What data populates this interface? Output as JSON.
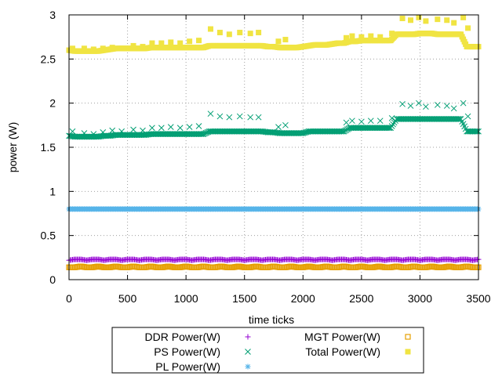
{
  "chart_data": {
    "type": "scatter",
    "xlabel": "time ticks",
    "ylabel": "power (W)",
    "xlim": [
      0,
      3500
    ],
    "ylim": [
      0,
      3
    ],
    "x_ticks": [
      "0",
      "500",
      "1000",
      "1500",
      "2000",
      "2500",
      "3000",
      "3500"
    ],
    "y_ticks": [
      "0",
      "0.5",
      "1",
      "1.5",
      "2",
      "2.5",
      "3"
    ],
    "grid": true,
    "legend_position": "below",
    "sample_step": 50,
    "series": [
      {
        "name": "DDR Power(W)",
        "marker": "plus",
        "color": "#9400d3",
        "x": [
          0,
          50,
          100,
          150,
          200,
          250,
          300,
          350,
          400,
          450,
          500,
          550,
          600,
          650,
          700,
          750,
          800,
          850,
          900,
          950,
          1000,
          1050,
          1100,
          1150,
          1200,
          1250,
          1300,
          1350,
          1400,
          1450,
          1500,
          1550,
          1600,
          1650,
          1700,
          1750,
          1800,
          1850,
          1900,
          1950,
          2000,
          2050,
          2100,
          2150,
          2200,
          2250,
          2300,
          2350,
          2400,
          2450,
          2500,
          2550,
          2600,
          2650,
          2700,
          2750,
          2800,
          2850,
          2900,
          2950,
          3000,
          3050,
          3100,
          3150,
          3200,
          3250,
          3300,
          3350,
          3400,
          3450,
          3500
        ],
        "y": [
          0.22,
          0.23,
          0.23,
          0.22,
          0.23,
          0.23,
          0.22,
          0.23,
          0.23,
          0.22,
          0.23,
          0.23,
          0.22,
          0.23,
          0.23,
          0.22,
          0.23,
          0.23,
          0.22,
          0.23,
          0.23,
          0.22,
          0.23,
          0.23,
          0.22,
          0.23,
          0.23,
          0.22,
          0.23,
          0.23,
          0.22,
          0.23,
          0.23,
          0.22,
          0.23,
          0.23,
          0.22,
          0.23,
          0.23,
          0.22,
          0.23,
          0.23,
          0.22,
          0.23,
          0.23,
          0.22,
          0.23,
          0.23,
          0.22,
          0.23,
          0.23,
          0.22,
          0.23,
          0.23,
          0.22,
          0.23,
          0.23,
          0.22,
          0.23,
          0.23,
          0.22,
          0.23,
          0.23,
          0.22,
          0.23,
          0.23,
          0.22,
          0.23,
          0.23,
          0.22,
          0.23
        ]
      },
      {
        "name": "PS Power(W)",
        "marker": "cross",
        "color": "#009e73",
        "x": [
          0,
          50,
          100,
          150,
          200,
          250,
          300,
          350,
          400,
          450,
          500,
          550,
          600,
          650,
          700,
          750,
          800,
          850,
          900,
          950,
          1000,
          1050,
          1100,
          1150,
          1200,
          1250,
          1300,
          1350,
          1400,
          1450,
          1500,
          1550,
          1600,
          1650,
          1700,
          1750,
          1800,
          1850,
          1900,
          1950,
          2000,
          2050,
          2100,
          2150,
          2200,
          2250,
          2300,
          2350,
          2400,
          2450,
          2500,
          2550,
          2600,
          2650,
          2700,
          2750,
          2800,
          2850,
          2900,
          2950,
          3000,
          3050,
          3100,
          3150,
          3200,
          3250,
          3300,
          3350,
          3400,
          3450,
          3500
        ],
        "y": [
          1.63,
          1.62,
          1.62,
          1.62,
          1.62,
          1.62,
          1.63,
          1.63,
          1.64,
          1.64,
          1.64,
          1.64,
          1.64,
          1.64,
          1.65,
          1.65,
          1.65,
          1.65,
          1.65,
          1.65,
          1.65,
          1.65,
          1.65,
          1.65,
          1.68,
          1.68,
          1.68,
          1.68,
          1.68,
          1.68,
          1.68,
          1.68,
          1.68,
          1.68,
          1.67,
          1.67,
          1.66,
          1.66,
          1.66,
          1.66,
          1.66,
          1.68,
          1.68,
          1.68,
          1.68,
          1.68,
          1.68,
          1.68,
          1.72,
          1.72,
          1.72,
          1.72,
          1.72,
          1.72,
          1.72,
          1.72,
          1.82,
          1.82,
          1.82,
          1.82,
          1.82,
          1.82,
          1.82,
          1.82,
          1.82,
          1.82,
          1.82,
          1.82,
          1.68,
          1.68,
          1.68
        ]
      },
      {
        "name": "PL Power(W)",
        "marker": "star",
        "color": "#56b4e9",
        "x": [
          0,
          50,
          100,
          150,
          200,
          250,
          300,
          350,
          400,
          450,
          500,
          550,
          600,
          650,
          700,
          750,
          800,
          850,
          900,
          950,
          1000,
          1050,
          1100,
          1150,
          1200,
          1250,
          1300,
          1350,
          1400,
          1450,
          1500,
          1550,
          1600,
          1650,
          1700,
          1750,
          1800,
          1850,
          1900,
          1950,
          2000,
          2050,
          2100,
          2150,
          2200,
          2250,
          2300,
          2350,
          2400,
          2450,
          2500,
          2550,
          2600,
          2650,
          2700,
          2750,
          2800,
          2850,
          2900,
          2950,
          3000,
          3050,
          3100,
          3150,
          3200,
          3250,
          3300,
          3350,
          3400,
          3450,
          3500
        ],
        "y": [
          0.8,
          0.8,
          0.8,
          0.8,
          0.8,
          0.8,
          0.8,
          0.8,
          0.8,
          0.8,
          0.8,
          0.8,
          0.8,
          0.8,
          0.8,
          0.8,
          0.8,
          0.8,
          0.8,
          0.8,
          0.8,
          0.8,
          0.8,
          0.8,
          0.8,
          0.8,
          0.8,
          0.8,
          0.8,
          0.8,
          0.8,
          0.8,
          0.8,
          0.8,
          0.8,
          0.8,
          0.8,
          0.8,
          0.8,
          0.8,
          0.8,
          0.8,
          0.8,
          0.8,
          0.8,
          0.8,
          0.8,
          0.8,
          0.8,
          0.8,
          0.8,
          0.8,
          0.8,
          0.8,
          0.8,
          0.8,
          0.8,
          0.8,
          0.8,
          0.8,
          0.8,
          0.8,
          0.8,
          0.8,
          0.8,
          0.8,
          0.8,
          0.8,
          0.8,
          0.8,
          0.8
        ]
      },
      {
        "name": "MGT Power(W)",
        "marker": "box-open",
        "color": "#e69f00",
        "x": [
          0,
          50,
          100,
          150,
          200,
          250,
          300,
          350,
          400,
          450,
          500,
          550,
          600,
          650,
          700,
          750,
          800,
          850,
          900,
          950,
          1000,
          1050,
          1100,
          1150,
          1200,
          1250,
          1300,
          1350,
          1400,
          1450,
          1500,
          1550,
          1600,
          1650,
          1700,
          1750,
          1800,
          1850,
          1900,
          1950,
          2000,
          2050,
          2100,
          2150,
          2200,
          2250,
          2300,
          2350,
          2400,
          2450,
          2500,
          2550,
          2600,
          2650,
          2700,
          2750,
          2800,
          2850,
          2900,
          2950,
          3000,
          3050,
          3100,
          3150,
          3200,
          3250,
          3300,
          3350,
          3400,
          3450,
          3500
        ],
        "y": [
          0.14,
          0.14,
          0.15,
          0.14,
          0.14,
          0.15,
          0.14,
          0.14,
          0.15,
          0.14,
          0.14,
          0.15,
          0.14,
          0.14,
          0.15,
          0.14,
          0.14,
          0.15,
          0.14,
          0.14,
          0.15,
          0.14,
          0.14,
          0.15,
          0.14,
          0.14,
          0.15,
          0.14,
          0.14,
          0.15,
          0.14,
          0.14,
          0.15,
          0.14,
          0.14,
          0.15,
          0.14,
          0.14,
          0.15,
          0.14,
          0.14,
          0.15,
          0.14,
          0.14,
          0.15,
          0.14,
          0.14,
          0.15,
          0.14,
          0.14,
          0.15,
          0.14,
          0.14,
          0.15,
          0.14,
          0.14,
          0.15,
          0.14,
          0.14,
          0.15,
          0.14,
          0.14,
          0.15,
          0.14,
          0.14,
          0.15,
          0.14,
          0.14,
          0.15,
          0.14,
          0.14
        ]
      },
      {
        "name": "Total Power(W)",
        "marker": "box-filled",
        "color": "#f0e442",
        "x": [
          0,
          50,
          100,
          150,
          200,
          250,
          300,
          350,
          400,
          450,
          500,
          550,
          600,
          650,
          700,
          750,
          800,
          850,
          900,
          950,
          1000,
          1050,
          1100,
          1150,
          1200,
          1250,
          1300,
          1350,
          1400,
          1450,
          1500,
          1550,
          1600,
          1650,
          1700,
          1750,
          1800,
          1850,
          1900,
          1950,
          2000,
          2050,
          2100,
          2150,
          2200,
          2250,
          2300,
          2350,
          2400,
          2450,
          2500,
          2550,
          2600,
          2650,
          2700,
          2750,
          2800,
          2850,
          2900,
          2950,
          3000,
          3050,
          3100,
          3150,
          3200,
          3250,
          3300,
          3350,
          3400,
          3450,
          3500
        ],
        "y": [
          2.6,
          2.59,
          2.59,
          2.59,
          2.59,
          2.59,
          2.6,
          2.61,
          2.62,
          2.62,
          2.62,
          2.62,
          2.62,
          2.62,
          2.63,
          2.63,
          2.63,
          2.63,
          2.63,
          2.63,
          2.63,
          2.63,
          2.63,
          2.63,
          2.65,
          2.65,
          2.65,
          2.65,
          2.65,
          2.65,
          2.65,
          2.65,
          2.65,
          2.65,
          2.64,
          2.64,
          2.63,
          2.63,
          2.63,
          2.63,
          2.64,
          2.65,
          2.66,
          2.66,
          2.66,
          2.67,
          2.68,
          2.68,
          2.7,
          2.7,
          2.71,
          2.71,
          2.71,
          2.71,
          2.71,
          2.71,
          2.78,
          2.78,
          2.78,
          2.78,
          2.79,
          2.79,
          2.79,
          2.78,
          2.78,
          2.78,
          2.78,
          2.78,
          2.64,
          2.64,
          2.64
        ]
      }
    ],
    "outliers": [
      {
        "series": 1,
        "x": [
          30,
          130,
          210,
          290,
          370,
          450,
          550,
          630,
          710,
          790,
          870,
          950,
          1030,
          1110,
          1210,
          1290,
          1370,
          1460,
          1550,
          1620,
          1790,
          1850,
          2370,
          2420,
          2500,
          2580,
          2660,
          2760,
          2850,
          2920,
          2990,
          3050,
          3150,
          3230,
          3290,
          3370,
          3410
        ],
        "y": [
          1.68,
          1.66,
          1.65,
          1.67,
          1.69,
          1.68,
          1.7,
          1.69,
          1.72,
          1.72,
          1.73,
          1.72,
          1.73,
          1.74,
          1.88,
          1.85,
          1.84,
          1.85,
          1.84,
          1.84,
          1.73,
          1.75,
          1.78,
          1.8,
          1.79,
          1.8,
          1.8,
          1.83,
          1.99,
          1.97,
          2.0,
          1.96,
          1.98,
          1.97,
          1.94,
          2.0,
          1.85
        ]
      },
      {
        "series": 4,
        "x": [
          30,
          130,
          210,
          290,
          370,
          450,
          550,
          630,
          710,
          790,
          870,
          950,
          1030,
          1110,
          1210,
          1290,
          1370,
          1460,
          1550,
          1620,
          1790,
          1850,
          2370,
          2420,
          2500,
          2580,
          2660,
          2760,
          2850,
          2920,
          2990,
          3050,
          3150,
          3230,
          3290,
          3370,
          3410
        ],
        "y": [
          2.62,
          2.62,
          2.61,
          2.62,
          2.63,
          2.62,
          2.65,
          2.64,
          2.68,
          2.68,
          2.69,
          2.68,
          2.7,
          2.71,
          2.84,
          2.8,
          2.78,
          2.8,
          2.79,
          2.8,
          2.7,
          2.72,
          2.74,
          2.76,
          2.75,
          2.76,
          2.75,
          2.79,
          2.96,
          2.94,
          2.97,
          2.93,
          2.95,
          2.94,
          2.91,
          2.97,
          2.85
        ]
      }
    ]
  }
}
